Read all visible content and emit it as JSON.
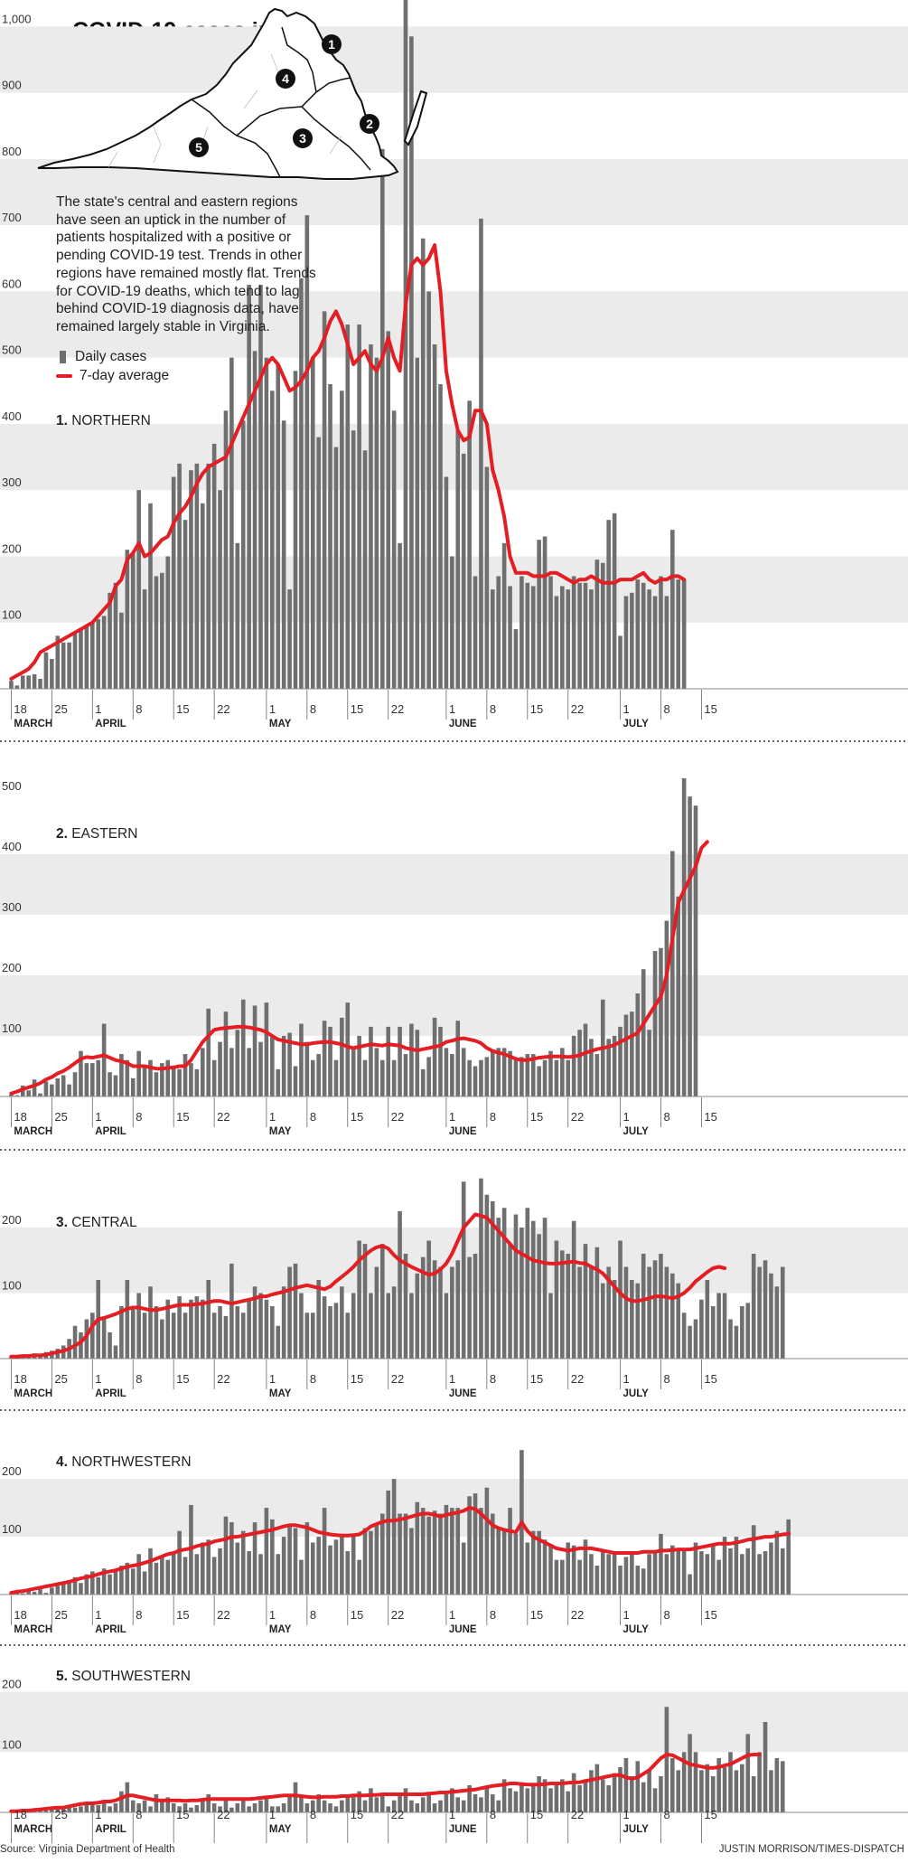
{
  "title": "COVID-19 cases in Virginia by region",
  "intro": "The state's central and eastern regions have seen an uptick in the number of patients hospitalized with a positive or pending COVID-19 test. Trends in other regions have remained mostly flat. Trends for COVID-19 deaths, which tend to lag behind COVID-19 diagnosis data, have remained largely stable in Virginia.",
  "legend": {
    "bars": "Daily cases",
    "line": "7-day average"
  },
  "source": "Source: Virginia Department of Health",
  "credit": "JUSTIN MORRISON/TIMES-DISPATCH",
  "colors": {
    "bars": "#6f6f6f",
    "line": "#e31e24",
    "band": "#ebebeb"
  },
  "map_labels": [
    "1",
    "2",
    "3",
    "4",
    "5"
  ],
  "x_ticks": [
    {
      "day": 18,
      "label": "18",
      "month": "MARCH"
    },
    {
      "day": 25,
      "label": "25"
    },
    {
      "day": 32,
      "label": "1",
      "month": "APRIL"
    },
    {
      "day": 39,
      "label": "8"
    },
    {
      "day": 46,
      "label": "15"
    },
    {
      "day": 53,
      "label": "22"
    },
    {
      "day": 62,
      "label": "1",
      "month": "MAY"
    },
    {
      "day": 69,
      "label": "8"
    },
    {
      "day": 76,
      "label": "15"
    },
    {
      "day": 83,
      "label": "22"
    },
    {
      "day": 93,
      "label": "1",
      "month": "JUNE"
    },
    {
      "day": 100,
      "label": "8"
    },
    {
      "day": 107,
      "label": "15"
    },
    {
      "day": 114,
      "label": "22"
    },
    {
      "day": 123,
      "label": "1",
      "month": "JULY"
    },
    {
      "day": 130,
      "label": "8"
    },
    {
      "day": 137,
      "label": "15"
    }
  ],
  "chart_data": [
    {
      "type": "bar",
      "region_number": "1.",
      "region_name": "NORTHERN",
      "x_start": 18,
      "x_unit": "day of year 2020 (18 = March 18)",
      "yticks": [
        100,
        200,
        300,
        400,
        500,
        600,
        700,
        800,
        900,
        1000
      ],
      "ytick_labels": [
        "100",
        "200",
        "300",
        "400",
        "500",
        "600",
        "700",
        "800",
        "900",
        "1,000"
      ],
      "ylim": [
        0,
        1010
      ],
      "daily": [
        12,
        5,
        20,
        20,
        22,
        15,
        55,
        45,
        80,
        70,
        70,
        85,
        90,
        95,
        100,
        105,
        110,
        145,
        160,
        115,
        210,
        205,
        300,
        150,
        280,
        170,
        175,
        200,
        320,
        340,
        255,
        330,
        340,
        280,
        340,
        370,
        300,
        420,
        500,
        220,
        405,
        610,
        510,
        610,
        500,
        450,
        490,
        405,
        150,
        480,
        620,
        715,
        500,
        380,
        570,
        460,
        365,
        450,
        550,
        390,
        550,
        360,
        520,
        500,
        815,
        540,
        420,
        220,
        1050,
        985,
        500,
        680,
        600,
        520,
        460,
        320,
        200,
        390,
        355,
        435,
        170,
        710,
        335,
        150,
        170,
        220,
        155,
        90,
        170,
        160,
        155,
        225,
        230,
        170,
        140,
        155,
        150,
        170,
        160,
        160,
        150,
        195,
        190,
        255,
        265,
        80,
        140,
        145,
        165,
        160,
        150,
        140,
        170,
        140,
        240,
        165,
        165
      ],
      "avg": [
        15,
        20,
        25,
        30,
        40,
        55,
        60,
        65,
        70,
        75,
        80,
        85,
        90,
        95,
        100,
        110,
        120,
        130,
        155,
        165,
        195,
        205,
        220,
        200,
        205,
        215,
        225,
        230,
        250,
        265,
        275,
        290,
        310,
        325,
        335,
        340,
        345,
        350,
        370,
        390,
        410,
        430,
        450,
        470,
        490,
        500,
        490,
        470,
        450,
        455,
        465,
        480,
        500,
        510,
        530,
        555,
        570,
        550,
        520,
        490,
        500,
        510,
        490,
        480,
        500,
        530,
        500,
        480,
        580,
        640,
        650,
        640,
        650,
        670,
        600,
        480,
        430,
        390,
        375,
        380,
        420,
        420,
        400,
        330,
        300,
        260,
        200,
        175,
        175,
        175,
        170,
        170,
        170,
        175,
        175,
        170,
        165,
        160,
        165,
        165,
        170,
        165,
        160,
        160,
        160,
        165,
        165,
        165,
        170,
        175,
        165,
        160,
        165,
        165,
        170,
        170,
        165
      ],
      "panel": {
        "top": 0,
        "bottom": 580
      }
    },
    {
      "type": "bar",
      "region_number": "2.",
      "region_name": "EASTERN",
      "x_start": 18,
      "x_unit": "day of year 2020 (18 = March 18)",
      "yticks": [
        100,
        200,
        300,
        400,
        500
      ],
      "ytick_labels": [
        "100",
        "200",
        "300",
        "400",
        "500"
      ],
      "ylim": [
        0,
        540
      ],
      "daily": [
        3,
        2,
        18,
        10,
        28,
        5,
        25,
        20,
        30,
        35,
        20,
        40,
        75,
        55,
        55,
        60,
        120,
        40,
        35,
        70,
        60,
        30,
        75,
        50,
        60,
        40,
        55,
        60,
        50,
        45,
        70,
        55,
        45,
        80,
        145,
        60,
        90,
        140,
        80,
        110,
        160,
        80,
        150,
        90,
        155,
        100,
        45,
        100,
        105,
        50,
        120,
        90,
        60,
        70,
        125,
        115,
        60,
        130,
        155,
        80,
        100,
        60,
        115,
        80,
        60,
        115,
        60,
        115,
        70,
        120,
        110,
        45,
        65,
        130,
        115,
        80,
        70,
        125,
        80,
        60,
        50,
        60,
        65,
        75,
        80,
        80,
        75,
        60,
        65,
        70,
        70,
        50,
        60,
        75,
        60,
        80,
        60,
        100,
        110,
        120,
        95,
        70,
        160,
        95,
        100,
        115,
        135,
        140,
        170,
        210,
        110,
        240,
        245,
        290,
        405,
        330,
        525,
        495,
        480
      ],
      "avg": [
        5,
        8,
        12,
        15,
        18,
        22,
        28,
        32,
        38,
        42,
        48,
        55,
        62,
        65,
        64,
        66,
        68,
        64,
        60,
        58,
        55,
        50,
        50,
        50,
        48,
        46,
        46,
        47,
        48,
        50,
        50,
        60,
        75,
        90,
        100,
        110,
        112,
        113,
        114,
        115,
        115,
        114,
        112,
        110,
        106,
        100,
        94,
        92,
        90,
        88,
        86,
        86,
        88,
        89,
        90,
        90,
        88,
        86,
        82,
        80,
        82,
        84,
        86,
        85,
        84,
        86,
        85,
        84,
        80,
        78,
        76,
        78,
        80,
        82,
        84,
        90,
        92,
        95,
        96,
        94,
        92,
        88,
        80,
        75,
        72,
        70,
        66,
        62,
        60,
        60,
        62,
        64,
        65,
        66,
        66,
        66,
        65,
        66,
        68,
        72,
        75,
        78,
        80,
        82,
        85,
        90,
        95,
        100,
        105,
        120,
        135,
        150,
        165,
        200,
        260,
        320,
        340,
        360,
        380,
        410,
        420
      ],
      "panel": {
        "top": 650,
        "bottom": 925
      }
    },
    {
      "type": "bar",
      "region_number": "3.",
      "region_name": "CENTRAL",
      "x_start": 18,
      "x_unit": "day of year 2020 (18 = March 18)",
      "yticks": [
        100,
        200
      ],
      "ytick_labels": [
        "100",
        "200"
      ],
      "ylim": [
        0,
        280
      ],
      "daily": [
        3,
        2,
        5,
        2,
        8,
        5,
        10,
        12,
        15,
        20,
        30,
        50,
        40,
        60,
        70,
        120,
        60,
        40,
        20,
        80,
        120,
        80,
        100,
        70,
        110,
        80,
        60,
        90,
        70,
        95,
        70,
        90,
        95,
        90,
        120,
        70,
        80,
        65,
        145,
        80,
        70,
        90,
        110,
        100,
        90,
        80,
        50,
        110,
        140,
        145,
        100,
        70,
        70,
        120,
        95,
        80,
        85,
        110,
        70,
        100,
        180,
        175,
        100,
        140,
        175,
        100,
        110,
        225,
        160,
        100,
        130,
        155,
        180,
        150,
        140,
        100,
        140,
        150,
        270,
        155,
        160,
        275,
        250,
        240,
        215,
        230,
        175,
        220,
        200,
        230,
        210,
        190,
        215,
        100,
        180,
        165,
        160,
        210,
        140,
        175,
        140,
        170,
        115,
        140,
        120,
        180,
        140,
        120,
        115,
        160,
        140,
        150,
        160,
        140,
        130,
        115,
        70,
        50,
        60,
        90,
        120,
        80,
        100,
        100,
        60,
        50,
        80,
        85,
        160,
        140,
        150,
        130,
        110,
        140
      ],
      "avg": [
        3,
        3,
        4,
        4,
        5,
        5,
        6,
        8,
        10,
        12,
        15,
        20,
        25,
        35,
        50,
        60,
        62,
        65,
        68,
        72,
        76,
        78,
        78,
        76,
        74,
        74,
        76,
        78,
        80,
        82,
        82,
        82,
        83,
        84,
        86,
        88,
        88,
        86,
        84,
        86,
        88,
        90,
        92,
        95,
        95,
        98,
        100,
        102,
        105,
        108,
        110,
        112,
        110,
        108,
        106,
        110,
        118,
        125,
        132,
        140,
        150,
        158,
        165,
        170,
        172,
        168,
        158,
        150,
        145,
        140,
        136,
        132,
        128,
        130,
        136,
        145,
        160,
        180,
        200,
        210,
        220,
        218,
        215,
        205,
        195,
        185,
        175,
        165,
        160,
        155,
        150,
        148,
        146,
        145,
        145,
        146,
        147,
        148,
        146,
        145,
        140,
        136,
        130,
        120,
        110,
        100,
        92,
        88,
        88,
        90,
        92,
        95,
        95,
        94,
        92,
        95,
        100,
        108,
        118,
        125,
        132,
        138,
        140,
        138
      ],
      "panel": {
        "top": 1015,
        "bottom": 1145
      }
    },
    {
      "type": "bar",
      "region_number": "4.",
      "region_name": "NORTHWESTERN",
      "x_start": 18,
      "x_unit": "day of year 2020 (18 = March 18)",
      "yticks": [
        100,
        200
      ],
      "ytick_labels": [
        "100",
        "200"
      ],
      "ylim": [
        0,
        280
      ],
      "daily": [
        2,
        3,
        2,
        8,
        5,
        10,
        3,
        12,
        15,
        20,
        25,
        30,
        20,
        35,
        40,
        30,
        45,
        35,
        40,
        50,
        55,
        45,
        70,
        40,
        80,
        55,
        65,
        60,
        70,
        110,
        65,
        155,
        70,
        90,
        95,
        65,
        80,
        135,
        125,
        90,
        110,
        75,
        125,
        70,
        150,
        130,
        70,
        100,
        120,
        115,
        60,
        125,
        90,
        100,
        150,
        85,
        95,
        105,
        75,
        105,
        60,
        115,
        110,
        120,
        140,
        180,
        200,
        140,
        140,
        115,
        160,
        150,
        135,
        145,
        140,
        155,
        150,
        150,
        90,
        170,
        175,
        150,
        185,
        140,
        115,
        110,
        150,
        105,
        250,
        90,
        110,
        110,
        95,
        85,
        60,
        60,
        90,
        85,
        60,
        95,
        70,
        50,
        75,
        70,
        75,
        50,
        65,
        70,
        50,
        45,
        70,
        75,
        105,
        70,
        85,
        75,
        80,
        35,
        90,
        75,
        70,
        85,
        60,
        100,
        80,
        100,
        70,
        80,
        120,
        70,
        75,
        90,
        110,
        80,
        130
      ],
      "avg": [
        3,
        5,
        6,
        8,
        10,
        12,
        14,
        16,
        18,
        20,
        22,
        25,
        28,
        30,
        32,
        35,
        38,
        40,
        42,
        45,
        48,
        50,
        52,
        55,
        58,
        62,
        66,
        70,
        72,
        76,
        78,
        80,
        84,
        86,
        88,
        92,
        94,
        96,
        100,
        100,
        102,
        104,
        106,
        108,
        110,
        112,
        115,
        118,
        120,
        120,
        118,
        116,
        112,
        108,
        106,
        104,
        103,
        102,
        102,
        103,
        104,
        110,
        118,
        122,
        126,
        128,
        128,
        130,
        132,
        135,
        138,
        140,
        140,
        138,
        135,
        138,
        140,
        142,
        145,
        150,
        148,
        140,
        130,
        120,
        115,
        112,
        110,
        108,
        125,
        110,
        100,
        95,
        90,
        85,
        80,
        78,
        76,
        78,
        80,
        80,
        80,
        78,
        76,
        74,
        72,
        72,
        72,
        72,
        72,
        74,
        74,
        74,
        76,
        76,
        77,
        78,
        78,
        78,
        80,
        82,
        84,
        86,
        88,
        88,
        88,
        90,
        92,
        95,
        96,
        98,
        100,
        100,
        102,
        104,
        105
      ],
      "panel": {
        "top": 1205,
        "bottom": 1350
      }
    },
    {
      "type": "bar",
      "region_number": "5.",
      "region_name": "SOUTHWESTERN",
      "x_start": 18,
      "x_unit": "day of year 2020 (18 = March 18)",
      "yticks": [
        100,
        200
      ],
      "ytick_labels": [
        "100",
        "200"
      ],
      "ylim": [
        0,
        240
      ],
      "daily": [
        2,
        1,
        2,
        3,
        2,
        5,
        3,
        5,
        8,
        10,
        12,
        8,
        10,
        15,
        18,
        12,
        20,
        10,
        15,
        35,
        50,
        20,
        15,
        20,
        10,
        30,
        20,
        25,
        15,
        10,
        15,
        8,
        12,
        20,
        30,
        15,
        10,
        20,
        8,
        15,
        20,
        10,
        15,
        20,
        25,
        10,
        10,
        15,
        30,
        50,
        25,
        15,
        20,
        30,
        20,
        15,
        10,
        20,
        30,
        25,
        35,
        20,
        40,
        25,
        30,
        10,
        20,
        30,
        40,
        20,
        15,
        25,
        30,
        15,
        20,
        30,
        40,
        25,
        20,
        45,
        30,
        25,
        40,
        30,
        20,
        55,
        40,
        35,
        50,
        40,
        45,
        60,
        55,
        40,
        50,
        55,
        35,
        65,
        45,
        55,
        70,
        80,
        55,
        45,
        65,
        75,
        90,
        60,
        85,
        50,
        70,
        40,
        60,
        175,
        90,
        70,
        100,
        130,
        100,
        70,
        80,
        60,
        90,
        75,
        100,
        70,
        80,
        130,
        60,
        100,
        150,
        70,
        90,
        85
      ],
      "avg": [
        2,
        2,
        3,
        3,
        4,
        5,
        6,
        7,
        8,
        8,
        10,
        12,
        14,
        15,
        15,
        16,
        18,
        18,
        20,
        24,
        28,
        28,
        26,
        24,
        22,
        20,
        20,
        20,
        20,
        20,
        19,
        20,
        20,
        21,
        22,
        22,
        22,
        22,
        22,
        22,
        22,
        22,
        23,
        24,
        25,
        26,
        27,
        28,
        28,
        28,
        27,
        26,
        25,
        25,
        26,
        26,
        26,
        27,
        27,
        28,
        28,
        28,
        29,
        29,
        30,
        30,
        30,
        30,
        30,
        30,
        30,
        30,
        31,
        32,
        33,
        33,
        34,
        35,
        36,
        37,
        38,
        40,
        42,
        44,
        45,
        46,
        48,
        48,
        47,
        46,
        46,
        46,
        47,
        48,
        48,
        48,
        49,
        50,
        50,
        52,
        54,
        56,
        58,
        60,
        62,
        62,
        58,
        56,
        58,
        64,
        70,
        80,
        90,
        96,
        95,
        90,
        85,
        80,
        78,
        76,
        74,
        74,
        75,
        78,
        80,
        85,
        90,
        95,
        96,
        96
      ],
      "panel": {
        "top": 1415,
        "bottom": 1525
      }
    }
  ]
}
